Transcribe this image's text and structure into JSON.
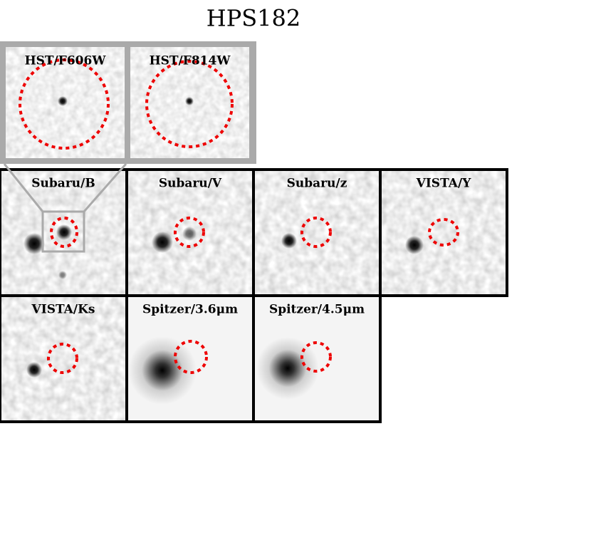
{
  "title": "HPS182",
  "hst_panels": [
    {
      "label": "HST/F606W"
    },
    {
      "label": "HST/F814W"
    }
  ],
  "panels": [
    {
      "label": "Subaru/B"
    },
    {
      "label": "Subaru/V"
    },
    {
      "label": "Subaru/z"
    },
    {
      "label": "VISTA/Y"
    },
    {
      "label": "VISTA/Ks"
    },
    {
      "label": "Spitzer/3.6μm"
    },
    {
      "label": "Spitzer/4.5μm"
    }
  ]
}
